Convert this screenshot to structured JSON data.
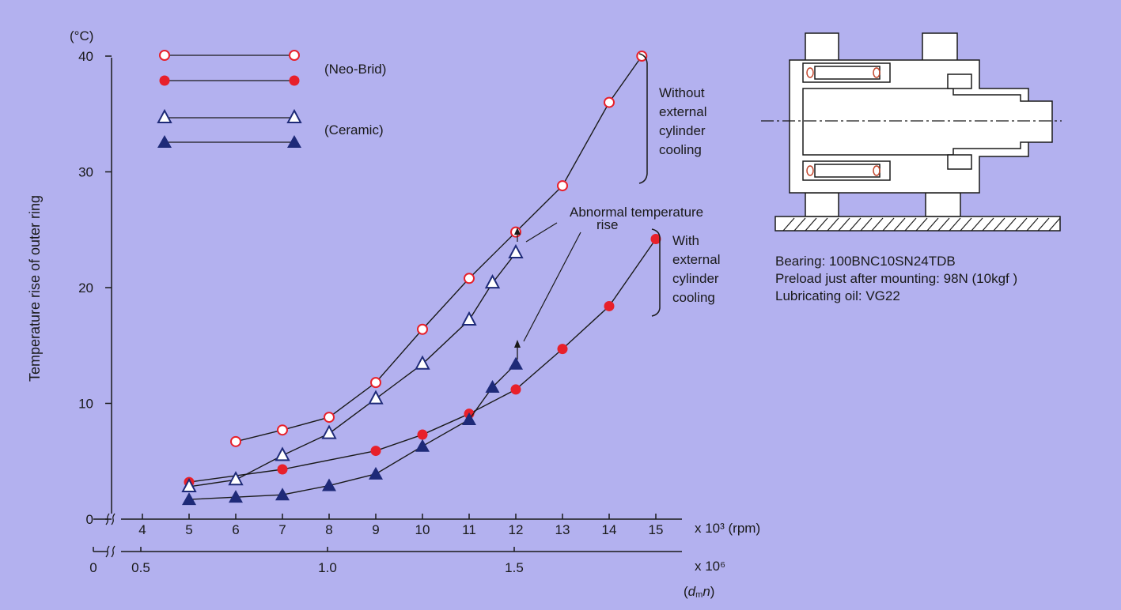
{
  "colors": {
    "background": "#b3b1ef",
    "neo_brid": "#e8202a",
    "ceramic": "#1e2a78",
    "line": "#1a1a1a",
    "hatch": "#ffffff"
  },
  "chart_data": {
    "type": "line",
    "ylabel": "Temperature rise of outer ring",
    "yunit": "(°C)",
    "ylim": [
      0,
      40
    ],
    "yticks": [
      "0",
      "10",
      "20",
      "30",
      "40"
    ],
    "xlabel": "x 10³ (rpm)",
    "xlim": [
      3,
      15.5
    ],
    "xticks": [
      "4",
      "5",
      "6",
      "7",
      "8",
      "9",
      "10",
      "11",
      "12",
      "13",
      "14",
      "15"
    ],
    "x2label": "x 10⁶",
    "x2ticks": [
      {
        "text": "0",
        "x": null
      },
      {
        "text": "0.5",
        "x": 4
      },
      {
        "text": "1.0",
        "x": 8
      },
      {
        "text": "1.5",
        "x": 12
      }
    ],
    "x2unit_d": "d",
    "x2unit_m": "m",
    "x2unit_n": "n",
    "legend": {
      "neo_brid_label": "(Neo-Brid)",
      "ceramic_label": "(Ceramic)"
    },
    "series": [
      {
        "group": "Neo-Brid",
        "cooling": "without",
        "marker": "open-circle",
        "x": [
          6,
          7,
          8,
          9,
          10,
          11,
          12,
          13,
          14,
          14.7
        ],
        "y": [
          6.7,
          7.7,
          8.8,
          11.8,
          16.4,
          20.8,
          24.8,
          28.8,
          36,
          40
        ]
      },
      {
        "group": "Neo-Brid",
        "cooling": "with",
        "marker": "filled-circle",
        "x": [
          5,
          7,
          9,
          10,
          11,
          12,
          13,
          14,
          15
        ],
        "y": [
          3.2,
          4.3,
          5.9,
          7.3,
          9.1,
          11.2,
          14.7,
          18.4,
          24.2
        ]
      },
      {
        "group": "Ceramic",
        "cooling": "without",
        "marker": "open-triangle",
        "x": [
          5,
          6,
          7,
          8,
          9,
          10,
          11,
          11.5,
          12
        ],
        "y": [
          2.8,
          3.4,
          5.5,
          7.4,
          10.4,
          13.4,
          17.2,
          20.4,
          23
        ]
      },
      {
        "group": "Ceramic",
        "cooling": "with",
        "marker": "filled-triangle",
        "x": [
          5,
          6,
          7,
          8,
          9,
          10,
          11,
          11.5,
          12
        ],
        "y": [
          1.7,
          1.9,
          2.1,
          2.9,
          3.9,
          6.3,
          8.6,
          11.4,
          13.4
        ]
      }
    ],
    "annotations": {
      "without_cooling": [
        "Without",
        "external",
        "cylinder",
        "cooling"
      ],
      "with_cooling": [
        "With",
        "external",
        "cylinder",
        "cooling"
      ],
      "abnormal": [
        "Abnormal temperature",
        "rise"
      ]
    }
  },
  "info": {
    "bearing": "Bearing: 100BNC10SN24TDB",
    "preload": "Preload just after mounting: 98N (10kgf )",
    "lubricant": "Lubricating oil: VG22"
  }
}
